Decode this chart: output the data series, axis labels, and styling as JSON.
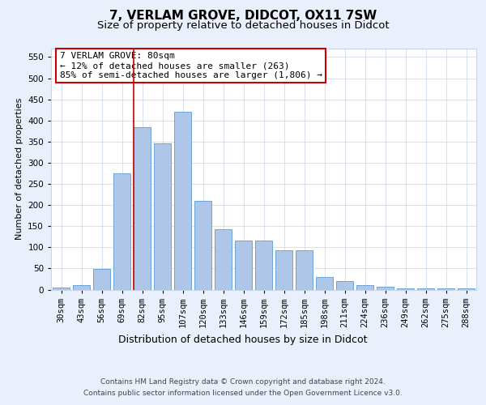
{
  "title": "7, VERLAM GROVE, DIDCOT, OX11 7SW",
  "subtitle": "Size of property relative to detached houses in Didcot",
  "xlabel": "Distribution of detached houses by size in Didcot",
  "ylabel": "Number of detached properties",
  "footer_line1": "Contains HM Land Registry data © Crown copyright and database right 2024.",
  "footer_line2": "Contains public sector information licensed under the Open Government Licence v3.0.",
  "bar_labels": [
    "30sqm",
    "43sqm",
    "56sqm",
    "69sqm",
    "82sqm",
    "95sqm",
    "107sqm",
    "120sqm",
    "133sqm",
    "146sqm",
    "159sqm",
    "172sqm",
    "185sqm",
    "198sqm",
    "211sqm",
    "224sqm",
    "236sqm",
    "249sqm",
    "262sqm",
    "275sqm",
    "288sqm"
  ],
  "bar_values": [
    5,
    10,
    48,
    275,
    385,
    345,
    420,
    210,
    143,
    115,
    115,
    92,
    92,
    30,
    20,
    10,
    7,
    3,
    3,
    3,
    3
  ],
  "bar_color": "#aec6e8",
  "bar_edge_color": "#5b9bd5",
  "vline_x_index": 4,
  "vline_color": "#cc0000",
  "annotation_line1": "7 VERLAM GROVE: 80sqm",
  "annotation_line2": "← 12% of detached houses are smaller (263)",
  "annotation_line3": "85% of semi-detached houses are larger (1,806) →",
  "annotation_box_color": "#cc0000",
  "ylim": [
    0,
    570
  ],
  "yticks": [
    0,
    50,
    100,
    150,
    200,
    250,
    300,
    350,
    400,
    450,
    500,
    550
  ],
  "bg_color": "#eaf0fb",
  "plot_bg_color": "#ffffff",
  "grid_color": "#c8d4e8",
  "title_fontsize": 11,
  "subtitle_fontsize": 9.5,
  "xlabel_fontsize": 9,
  "ylabel_fontsize": 8,
  "tick_fontsize": 7.5,
  "annotation_fontsize": 8,
  "footer_fontsize": 6.5
}
